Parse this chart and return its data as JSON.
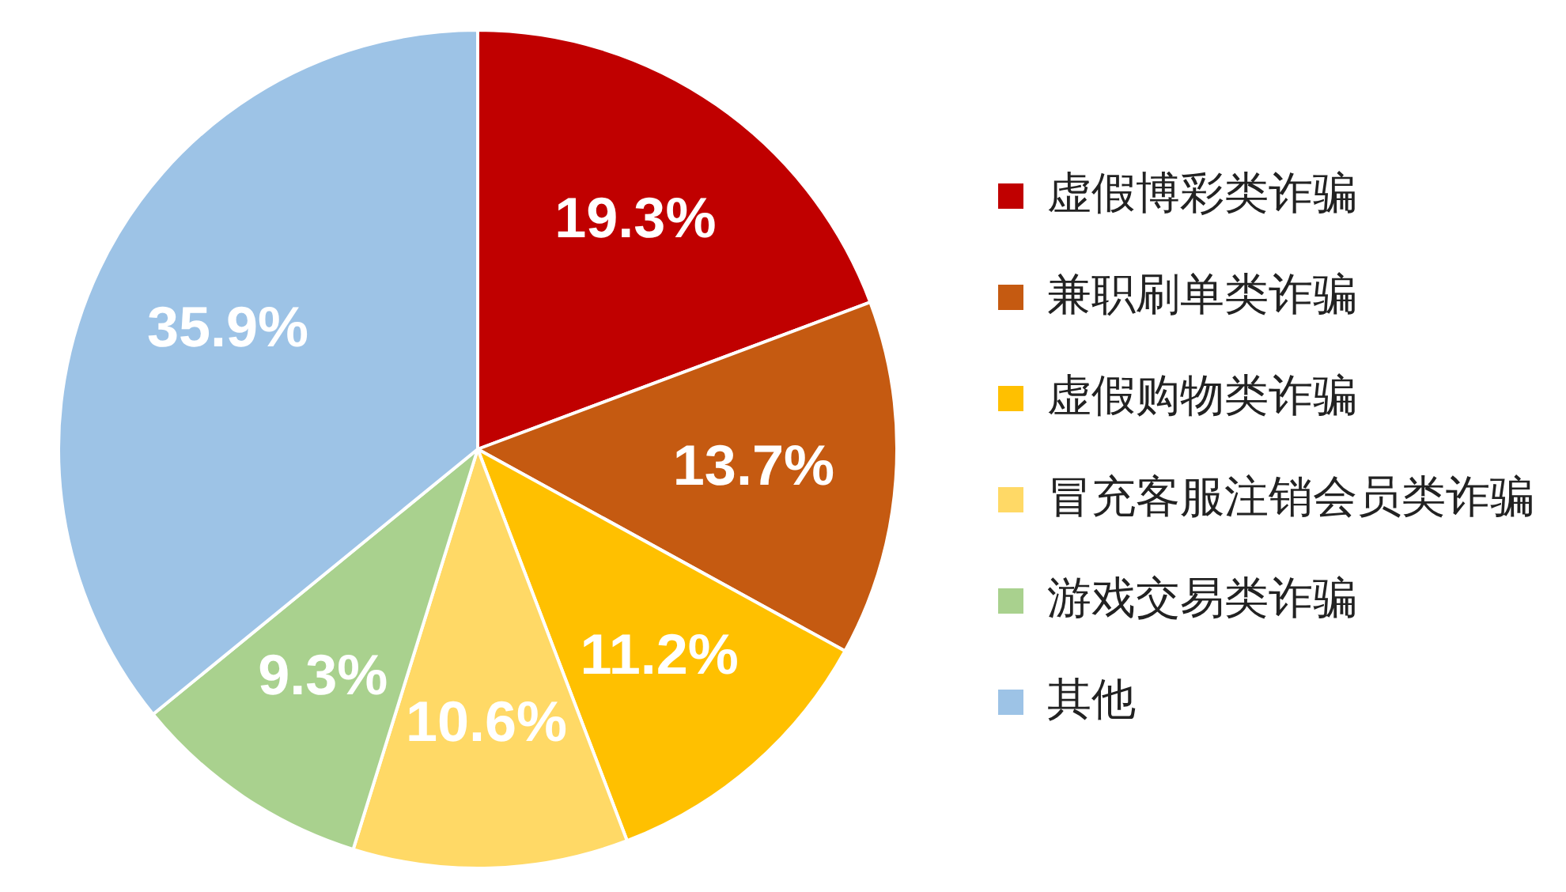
{
  "chart_data": {
    "type": "pie",
    "categories": [
      "虚假博彩类诈骗",
      "兼职刷单类诈骗",
      "虚假购物类诈骗",
      "冒充客服注销会员类诈骗",
      "游戏交易类诈骗",
      "其他"
    ],
    "values": [
      19.3,
      13.7,
      11.2,
      10.6,
      9.3,
      35.9
    ],
    "colors": [
      "#c00000",
      "#c55a11",
      "#ffc000",
      "#ffd966",
      "#a9d18e",
      "#9dc3e6"
    ],
    "value_labels": [
      "19.3%",
      "13.7%",
      "11.2%",
      "10.6%",
      "9.3%",
      "35.9%"
    ],
    "legend": "right"
  }
}
